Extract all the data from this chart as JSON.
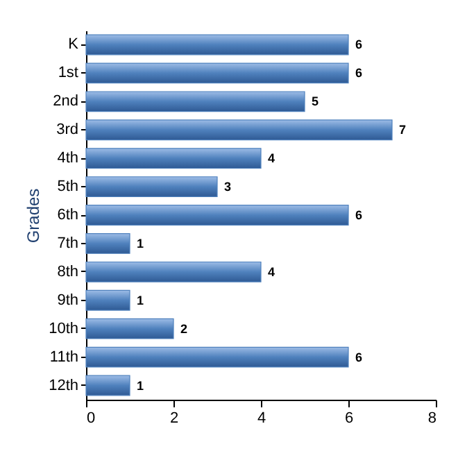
{
  "chart_data": {
    "type": "bar",
    "orientation": "horizontal",
    "ylabel": "Grades",
    "categories": [
      "K",
      "1st",
      "2nd",
      "3rd",
      "4th",
      "5th",
      "6th",
      "7th",
      "8th",
      "9th",
      "10th",
      "11th",
      "12th"
    ],
    "values": [
      6,
      6,
      5,
      7,
      4,
      3,
      6,
      1,
      4,
      1,
      2,
      6,
      1
    ],
    "color": "#4f81bd",
    "xlim": [
      0,
      8
    ],
    "xticks": [
      0,
      2,
      4,
      6,
      8
    ],
    "data_labels": true,
    "grid": false
  }
}
